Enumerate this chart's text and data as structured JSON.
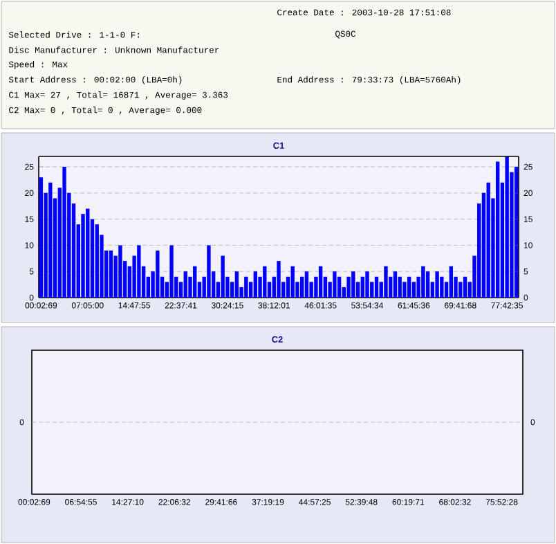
{
  "chart_data": [
    {
      "type": "other",
      "annotations": [
        "Create Date : 2003-10-28 17:51:08",
        "Selected Drive : 1-1-0 F:",
        "QS0C",
        "Disc Manufacturer : Unknown Manufacturer",
        "Speed : Max",
        "Start Address : 00:02:00 (LBA=0h)",
        "End Address : 79:33:73 (LBA=5760Ah)",
        "C1 Max= 27 , Total= 16871 , Average= 3.363",
        "C2 Max= 0 , Total= 0 , Average= 0.000"
      ]
    },
    {
      "type": "bar",
      "title": "C1",
      "color": "#0000ff",
      "grid": "y",
      "ylim": [
        0,
        27
      ],
      "yticks": [
        0,
        5,
        10,
        15,
        20,
        25
      ],
      "y2lim": [
        0,
        27
      ],
      "y2ticks": [
        0,
        5,
        10,
        15,
        20,
        25
      ],
      "categories": [
        "00:02:69",
        null,
        null,
        null,
        null,
        null,
        null,
        null,
        null,
        null,
        "07:05:00",
        null,
        null,
        null,
        null,
        null,
        null,
        null,
        null,
        null,
        "14:47:55",
        null,
        null,
        null,
        null,
        null,
        null,
        null,
        null,
        null,
        "22:37:41",
        null,
        null,
        null,
        null,
        null,
        null,
        null,
        null,
        null,
        "30:24:15",
        null,
        null,
        null,
        null,
        null,
        null,
        null,
        null,
        null,
        "38:12:01",
        null,
        null,
        null,
        null,
        null,
        null,
        null,
        null,
        null,
        "46:01:35",
        null,
        null,
        null,
        null,
        null,
        null,
        null,
        null,
        null,
        "53:54:34",
        null,
        null,
        null,
        null,
        null,
        null,
        null,
        null,
        null,
        "61:45:36",
        null,
        null,
        null,
        null,
        null,
        null,
        null,
        null,
        null,
        "69:41:68",
        null,
        null,
        null,
        null,
        null,
        null,
        null,
        null,
        null,
        "77:42:35",
        null,
        null
      ],
      "values": [
        23,
        20,
        22,
        19,
        21,
        25,
        20,
        18,
        14,
        16,
        17,
        15,
        14,
        12,
        9,
        9,
        8,
        10,
        7,
        6,
        8,
        10,
        6,
        4,
        5,
        9,
        4,
        3,
        10,
        4,
        3,
        5,
        4,
        6,
        3,
        4,
        10,
        5,
        3,
        8,
        4,
        3,
        5,
        2,
        4,
        3,
        5,
        4,
        6,
        3,
        4,
        7,
        3,
        4,
        6,
        3,
        4,
        5,
        3,
        4,
        6,
        4,
        3,
        5,
        4,
        2,
        4,
        5,
        3,
        4,
        5,
        3,
        4,
        3,
        6,
        4,
        5,
        4,
        3,
        4,
        3,
        4,
        6,
        5,
        3,
        5,
        4,
        3,
        6,
        4,
        3,
        4,
        3,
        8,
        18,
        20,
        22,
        19,
        26,
        22,
        27,
        24,
        25
      ]
    },
    {
      "type": "other",
      "title": "C2",
      "annotations": [
        "0",
        "0"
      ],
      "categories": [
        "00:02:69",
        null,
        null,
        null,
        null,
        null,
        null,
        null,
        null,
        null,
        "06:54:55",
        null,
        null,
        null,
        null,
        null,
        null,
        null,
        null,
        null,
        "14:27:10",
        null,
        null,
        null,
        null,
        null,
        null,
        null,
        null,
        null,
        "22:06:32",
        null,
        null,
        null,
        null,
        null,
        null,
        null,
        null,
        null,
        "29:41:66",
        null,
        null,
        null,
        null,
        null,
        null,
        null,
        null,
        null,
        "37:19:19",
        null,
        null,
        null,
        null,
        null,
        null,
        null,
        null,
        null,
        "44:57:25",
        null,
        null,
        null,
        null,
        null,
        null,
        null,
        null,
        null,
        "52:39:48",
        null,
        null,
        null,
        null,
        null,
        null,
        null,
        null,
        null,
        "60:19:71",
        null,
        null,
        null,
        null,
        null,
        null,
        null,
        null,
        null,
        "68:02:32",
        null,
        null,
        null,
        null,
        null,
        null,
        null,
        null,
        null,
        "75:52:28",
        null,
        null,
        null,
        null
      ]
    }
  ]
}
